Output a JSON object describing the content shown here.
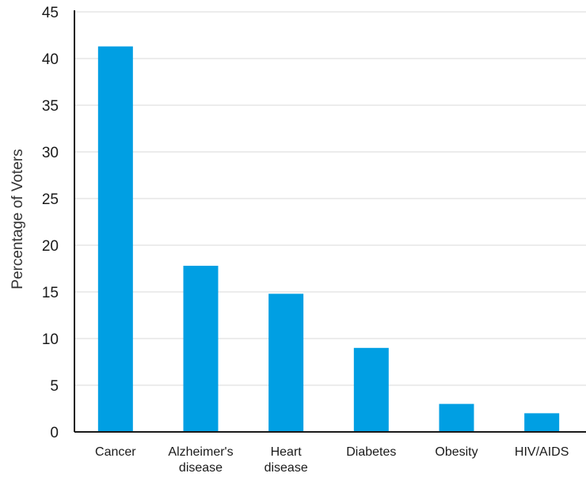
{
  "chart_data": {
    "type": "bar",
    "title": "",
    "xlabel": "",
    "ylabel": "Percentage of Voters",
    "categories": [
      [
        "Cancer"
      ],
      [
        "Alzheimer's",
        "disease"
      ],
      [
        "Heart",
        "disease"
      ],
      [
        "Diabetes"
      ],
      [
        "Obesity"
      ],
      [
        "HIV/AIDS"
      ]
    ],
    "values": [
      41.3,
      17.8,
      14.8,
      9.0,
      3.0,
      2.0
    ],
    "ylim": [
      0,
      45
    ],
    "yticks": [
      0,
      5,
      10,
      15,
      20,
      25,
      30,
      35,
      40,
      45
    ],
    "grid": true,
    "colors": {
      "bar": "#009fe3",
      "grid": "#e6e6e6",
      "axis": "#1a1a1a"
    }
  }
}
